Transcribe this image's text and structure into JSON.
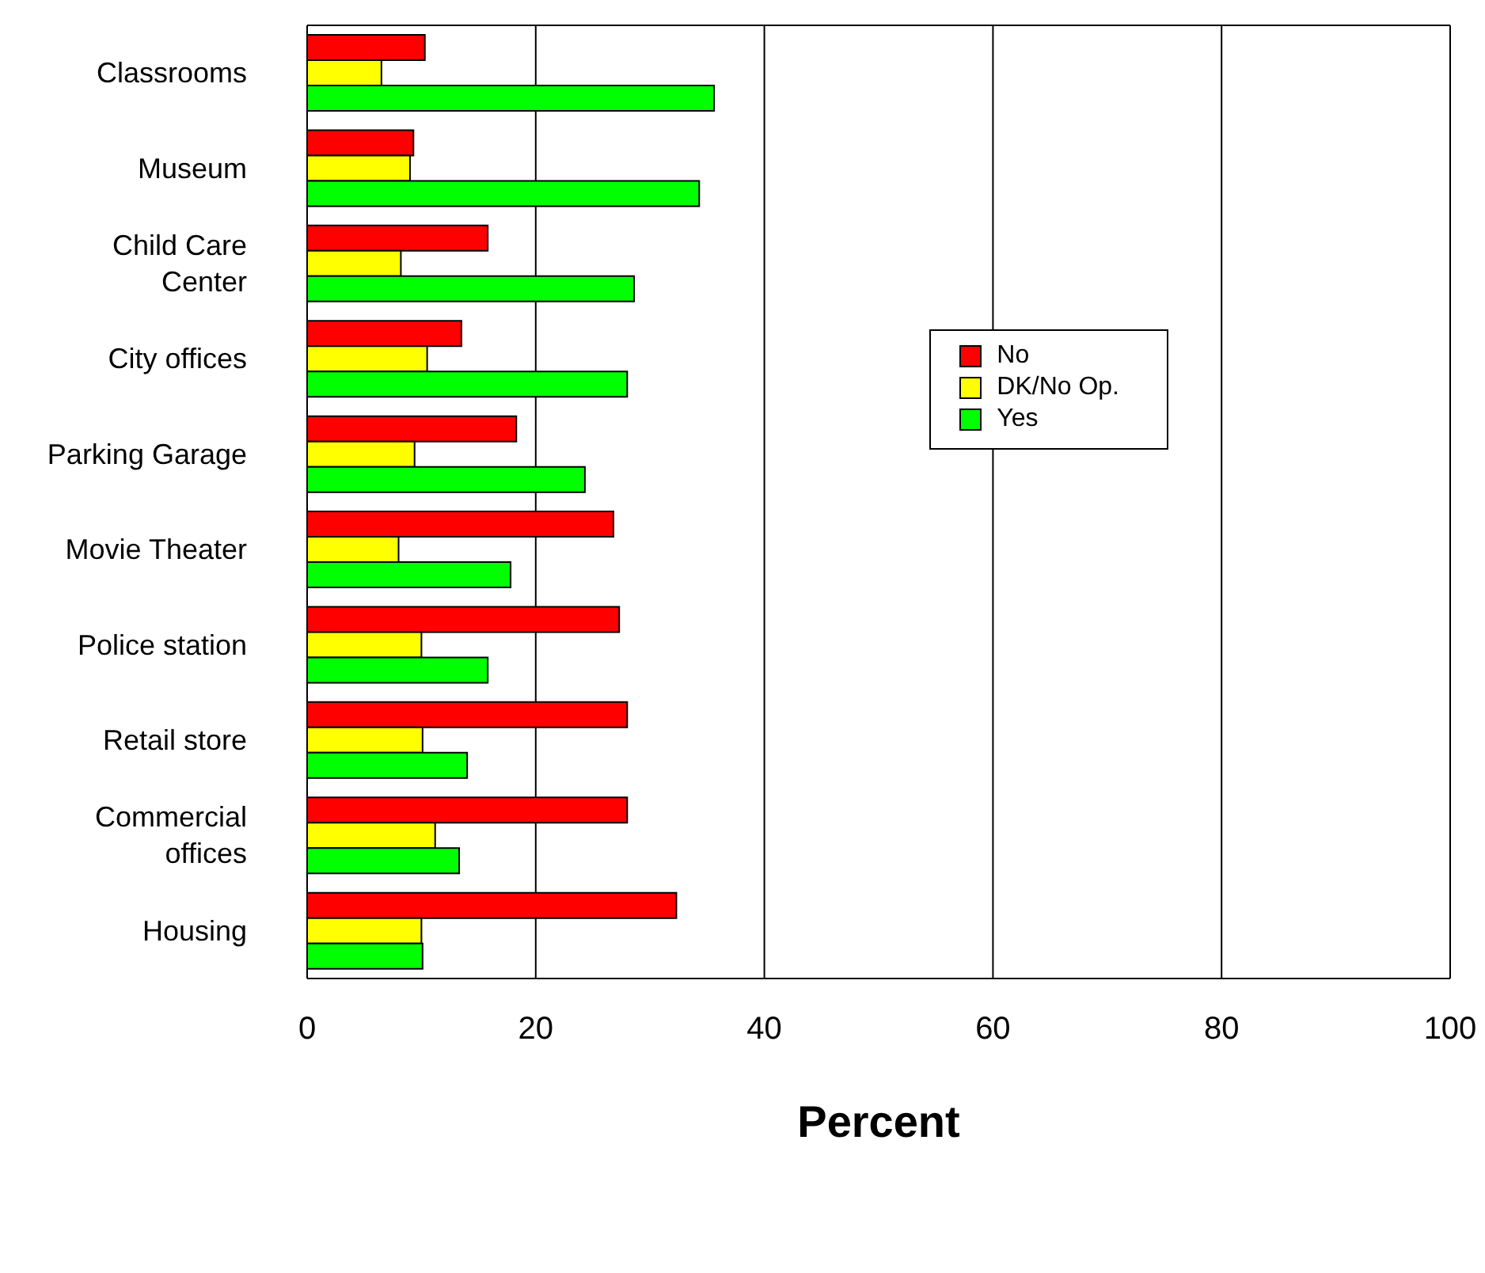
{
  "chart_data": {
    "type": "bar",
    "orientation": "horizontal",
    "xlabel": "Percent",
    "categories": [
      "Classrooms",
      "Museum",
      "Child Care Center",
      "City offices",
      "Parking Garage",
      "Movie Theater",
      "Police station",
      "Retail store",
      "Commercial offices",
      "Housing"
    ],
    "series": [
      {
        "name": "No",
        "color": "#ff0000",
        "values": [
          10.3,
          9.3,
          15.8,
          13.5,
          18.3,
          26.8,
          27.3,
          28.0,
          28.0,
          32.3
        ]
      },
      {
        "name": "DK/No Op.",
        "color": "#ffff00",
        "values": [
          6.5,
          9.0,
          8.2,
          10.5,
          9.4,
          8.0,
          10.0,
          10.1,
          11.2,
          10.0
        ]
      },
      {
        "name": "Yes",
        "color": "#00ff00",
        "values": [
          35.6,
          34.3,
          28.6,
          28.0,
          24.3,
          17.8,
          15.8,
          14.0,
          13.3,
          10.1
        ]
      }
    ],
    "xlim": [
      0,
      100
    ],
    "xticks": [
      0,
      20,
      40,
      60,
      80,
      100
    ],
    "grid": "x",
    "legend": "right"
  }
}
